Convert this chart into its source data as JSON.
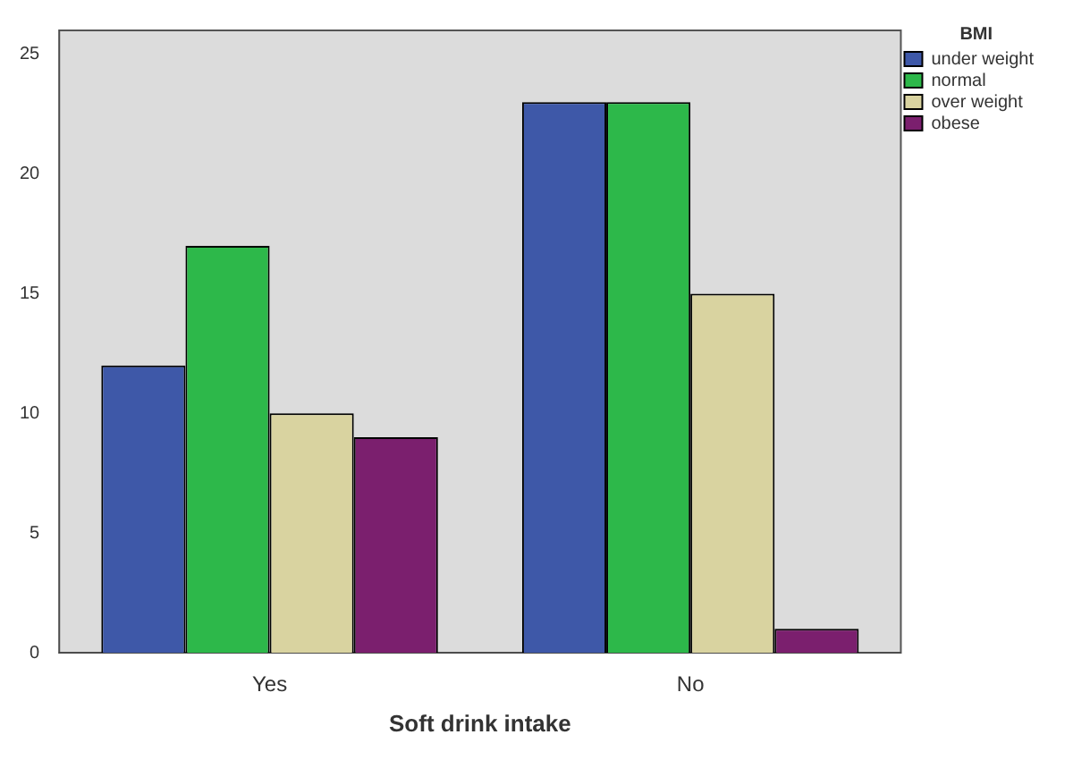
{
  "chart_data": {
    "type": "bar",
    "xlabel": "Soft drink intake",
    "legend_title": "BMI",
    "categories": [
      "Yes",
      "No"
    ],
    "series": [
      {
        "name": "under weight",
        "color": "#3e58a8",
        "values": [
          12,
          23
        ]
      },
      {
        "name": "normal",
        "color": "#2db84a",
        "values": [
          17,
          23
        ]
      },
      {
        "name": "over weight",
        "color": "#d9d3a0",
        "values": [
          10,
          15
        ]
      },
      {
        "name": "obese",
        "color": "#7b1f6e",
        "values": [
          9,
          1
        ]
      }
    ],
    "ylim": [
      0,
      26
    ],
    "yticks": [
      0,
      5,
      10,
      15,
      20,
      25
    ],
    "grid": false,
    "legend": "top right"
  }
}
